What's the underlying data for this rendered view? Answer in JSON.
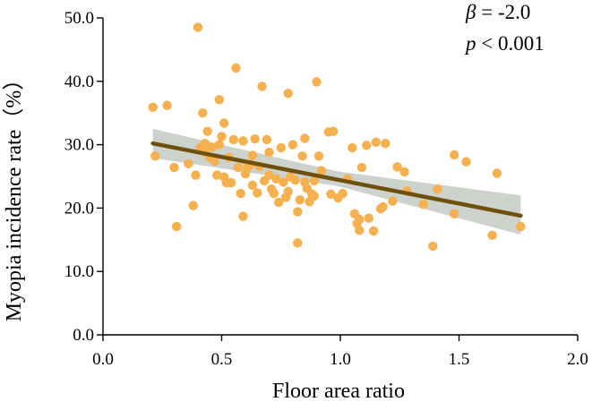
{
  "chart_data": {
    "type": "scatter",
    "title": "",
    "xlabel": "Floor area ratio",
    "ylabel": "Myopia incidence rate（%）",
    "xlim": [
      0.0,
      2.0
    ],
    "ylim": [
      0.0,
      50.0
    ],
    "x_ticks": [
      0.0,
      0.5,
      1.0,
      1.5,
      2.0
    ],
    "x_tick_labels": [
      "0.0",
      "0.5",
      "1.0",
      "1.5",
      "2.0"
    ],
    "y_ticks": [
      0.0,
      10.0,
      20.0,
      30.0,
      40.0,
      50.0
    ],
    "y_tick_labels": [
      "0.0",
      "10.0",
      "20.0",
      "30.0",
      "40.0",
      "50.0"
    ],
    "grid": false,
    "annotation": {
      "beta_symbol": "β",
      "beta_text": " = -2.0",
      "p_symbol": "p",
      "p_text": " < 0.001"
    },
    "point_color": "#f5b04f",
    "fit_color": "#6e4f0c",
    "band_color": "#b8bfb8",
    "regression": {
      "x_start": 0.21,
      "y_start": 30.2,
      "x_end": 1.76,
      "y_end": 18.8,
      "ci_upper_start": 32.5,
      "ci_lower_start": 27.9,
      "ci_upper_mid": 25.8,
      "ci_lower_mid": 23.5,
      "ci_upper_end": 22.0,
      "ci_lower_end": 15.8
    },
    "series": [
      {
        "name": "observations",
        "x": [
          0.21,
          0.22,
          0.27,
          0.3,
          0.31,
          0.36,
          0.38,
          0.39,
          0.4,
          0.41,
          0.42,
          0.43,
          0.43,
          0.44,
          0.45,
          0.46,
          0.47,
          0.48,
          0.49,
          0.49,
          0.5,
          0.51,
          0.51,
          0.52,
          0.53,
          0.54,
          0.55,
          0.56,
          0.57,
          0.58,
          0.59,
          0.59,
          0.6,
          0.61,
          0.62,
          0.63,
          0.63,
          0.64,
          0.65,
          0.66,
          0.67,
          0.68,
          0.69,
          0.7,
          0.7,
          0.71,
          0.72,
          0.73,
          0.74,
          0.75,
          0.76,
          0.77,
          0.78,
          0.78,
          0.79,
          0.8,
          0.81,
          0.82,
          0.82,
          0.83,
          0.84,
          0.85,
          0.85,
          0.86,
          0.87,
          0.88,
          0.89,
          0.89,
          0.9,
          0.91,
          0.92,
          0.95,
          0.96,
          0.97,
          0.99,
          1.01,
          1.03,
          1.05,
          1.06,
          1.07,
          1.08,
          1.08,
          1.09,
          1.11,
          1.12,
          1.14,
          1.15,
          1.17,
          1.18,
          1.19,
          1.22,
          1.24,
          1.27,
          1.28,
          1.35,
          1.39,
          1.41,
          1.48,
          1.48,
          1.53,
          1.64,
          1.66,
          1.76
        ],
        "y": [
          35.9,
          28.2,
          36.2,
          26.4,
          17.1,
          27.0,
          20.4,
          25.2,
          48.5,
          29.5,
          35.0,
          28.8,
          30.2,
          32.1,
          28.0,
          29.6,
          27.4,
          25.2,
          37.1,
          30.0,
          31.3,
          33.4,
          24.9,
          24.0,
          28.0,
          24.0,
          30.8,
          42.1,
          26.4,
          22.3,
          18.7,
          30.6,
          25.4,
          26.4,
          26.9,
          28.3,
          23.6,
          30.9,
          22.4,
          26.6,
          39.2,
          24.3,
          30.8,
          28.8,
          25.2,
          23.0,
          22.3,
          24.6,
          20.9,
          29.5,
          24.1,
          21.7,
          22.6,
          38.1,
          24.9,
          30.0,
          24.4,
          14.5,
          19.4,
          21.3,
          28.2,
          31.0,
          24.1,
          23.1,
          21.0,
          22.2,
          21.9,
          24.3,
          39.9,
          28.2,
          25.9,
          32.0,
          22.2,
          32.1,
          21.6,
          22.3,
          24.6,
          29.5,
          19.1,
          17.6,
          16.5,
          18.2,
          26.4,
          29.9,
          18.4,
          16.4,
          30.4,
          19.9,
          20.2,
          30.2,
          21.1,
          26.5,
          25.7,
          22.7,
          20.6,
          14.0,
          23.0,
          28.4,
          19.1,
          27.3,
          15.7,
          25.5,
          17.1
        ]
      }
    ]
  }
}
